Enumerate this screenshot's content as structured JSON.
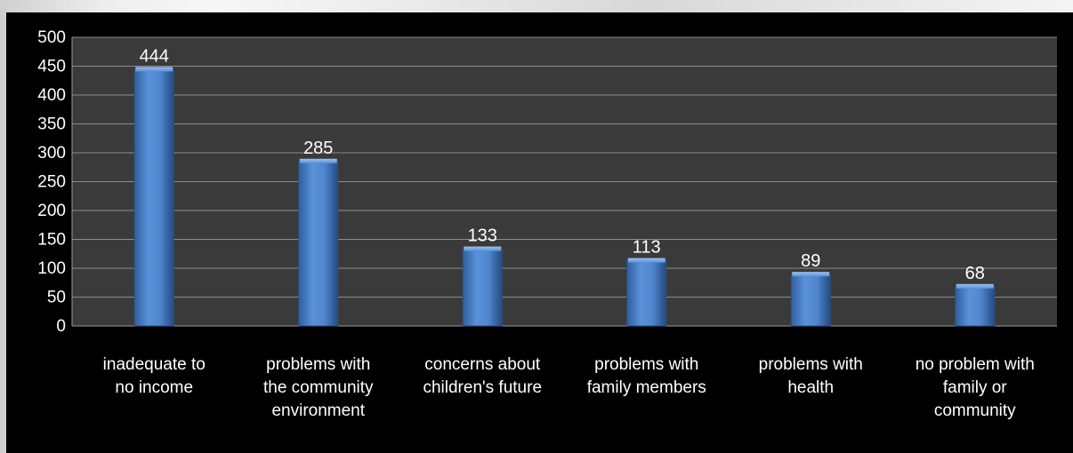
{
  "chart_data": {
    "type": "bar",
    "categories": [
      [
        "inadequate to",
        "no income"
      ],
      [
        "problems with",
        "the community",
        "environment"
      ],
      [
        "concerns about",
        "children's future"
      ],
      [
        "problems with",
        "family members"
      ],
      [
        "problems with",
        "health"
      ],
      [
        "no problem with",
        "family or",
        "community"
      ]
    ],
    "values": [
      444,
      285,
      133,
      113,
      89,
      68
    ],
    "ylim": [
      0,
      500
    ],
    "yticks": [
      0,
      50,
      100,
      150,
      200,
      250,
      300,
      350,
      400,
      450,
      500
    ],
    "grid": true,
    "bar_color": "#4f86cf",
    "plot_background": "#3a3a3a",
    "background": "#000000",
    "text_color": "#ffffff"
  }
}
